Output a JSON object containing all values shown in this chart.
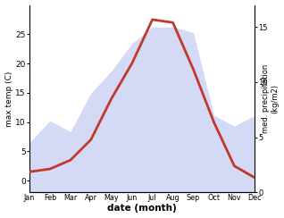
{
  "months": [
    "Jan",
    "Feb",
    "Mar",
    "Apr",
    "May",
    "Jun",
    "Jul",
    "Aug",
    "Sep",
    "Oct",
    "Nov",
    "Dec"
  ],
  "month_indices": [
    1,
    2,
    3,
    4,
    5,
    6,
    7,
    8,
    9,
    10,
    11,
    12
  ],
  "temperature": [
    1.5,
    2.0,
    3.5,
    7.0,
    14.0,
    20.0,
    27.5,
    27.0,
    19.0,
    10.0,
    2.5,
    0.5
  ],
  "precipitation": [
    4.5,
    6.5,
    5.5,
    9.0,
    11.0,
    13.5,
    15.0,
    15.0,
    14.5,
    7.0,
    6.0,
    7.0
  ],
  "temp_color": "#c0392b",
  "precip_fill_color": "#b8c0f0",
  "ylabel_left": "max temp (C)",
  "ylabel_right": "med. precipitation\n(kg/m2)",
  "xlabel": "date (month)",
  "ylim_left": [
    -2,
    30
  ],
  "ylim_right": [
    0,
    17
  ],
  "yticks_left": [
    0,
    5,
    10,
    15,
    20,
    25
  ],
  "yticks_right": [
    0,
    5,
    10,
    15
  ],
  "bg_color": "#ffffff",
  "line_width": 2.0,
  "fill_alpha": 0.6
}
